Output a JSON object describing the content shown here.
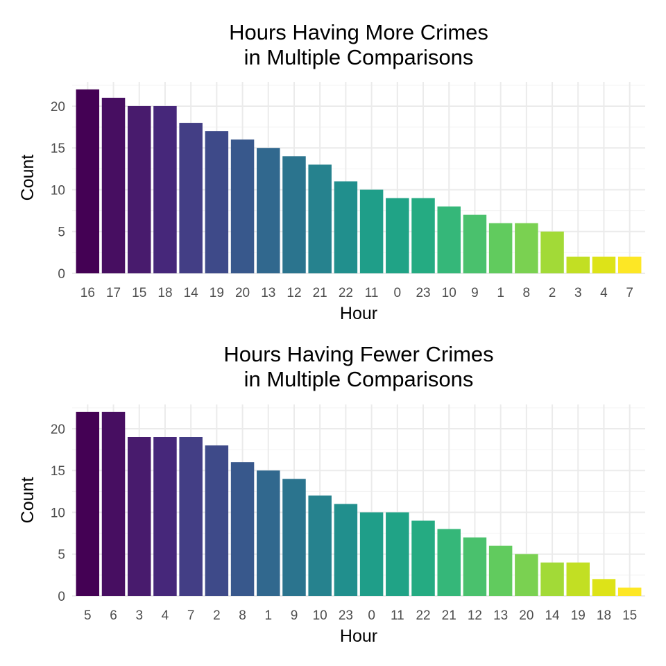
{
  "chart_data": [
    {
      "type": "bar",
      "title_lines": [
        "Hours Having More Crimes",
        "in Multiple Comparisons"
      ],
      "xlabel": "Hour",
      "ylabel": "Count",
      "categories": [
        "16",
        "17",
        "15",
        "18",
        "14",
        "19",
        "20",
        "13",
        "12",
        "21",
        "22",
        "11",
        "0",
        "23",
        "10",
        "9",
        "1",
        "8",
        "2",
        "3",
        "4",
        "7"
      ],
      "values": [
        22,
        21,
        20,
        20,
        18,
        17,
        16,
        15,
        14,
        13,
        11,
        10,
        9,
        9,
        8,
        7,
        6,
        6,
        5,
        2,
        2,
        2
      ],
      "ylim": [
        0,
        22.9
      ],
      "yticks": [
        0,
        5,
        10,
        15,
        20
      ],
      "grid": true,
      "legend": "none",
      "colors": [
        "#440154",
        "#470E61",
        "#481B6D",
        "#46277A",
        "#433E85",
        "#3E4A89",
        "#38588C",
        "#31688E",
        "#2B748E",
        "#26828E",
        "#218F8D",
        "#1F9E89",
        "#20A386",
        "#25AB82",
        "#35B779",
        "#4AC16D",
        "#61CB5E",
        "#7AD151",
        "#A2DA37",
        "#C2DF23",
        "#DDE318",
        "#FDE725"
      ]
    },
    {
      "type": "bar",
      "title_lines": [
        "Hours Having Fewer Crimes",
        "in Multiple Comparisons"
      ],
      "xlabel": "Hour",
      "ylabel": "Count",
      "categories": [
        "5",
        "6",
        "3",
        "4",
        "7",
        "2",
        "8",
        "1",
        "9",
        "10",
        "23",
        "0",
        "11",
        "22",
        "21",
        "12",
        "13",
        "20",
        "14",
        "19",
        "18",
        "15"
      ],
      "values": [
        22,
        22,
        19,
        19,
        19,
        18,
        16,
        15,
        14,
        12,
        11,
        10,
        10,
        9,
        8,
        7,
        6,
        5,
        4,
        4,
        2,
        1
      ],
      "ylim": [
        0,
        22.9
      ],
      "yticks": [
        0,
        5,
        10,
        15,
        20
      ],
      "grid": true,
      "legend": "none",
      "colors": [
        "#440154",
        "#470E61",
        "#481B6D",
        "#46277A",
        "#433E85",
        "#3E4A89",
        "#38588C",
        "#31688E",
        "#2B748E",
        "#26828E",
        "#218F8D",
        "#1F9E89",
        "#20A386",
        "#25AB82",
        "#35B779",
        "#4AC16D",
        "#61CB5E",
        "#7AD151",
        "#A2DA37",
        "#C2DF23",
        "#DDE318",
        "#FDE725"
      ]
    }
  ]
}
